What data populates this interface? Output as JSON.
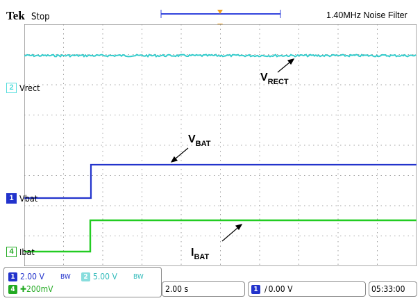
{
  "header": {
    "brand": "Tek",
    "acq_state": "Stop",
    "filter_text": "1.40MHz  Noise Filter"
  },
  "channels": {
    "ch2": {
      "number": "2",
      "label": "Vrect",
      "color": "#55dddd"
    },
    "ch1": {
      "number": "1",
      "label": "Vbat",
      "color": "#2233cc"
    },
    "ch4": {
      "number": "4",
      "label": "Ibat",
      "color": "#22cc22"
    }
  },
  "annotations": {
    "vrect": {
      "main": "V",
      "sub": "RECT"
    },
    "vbat": {
      "main": "V",
      "sub": "BAT"
    },
    "ibat": {
      "main": "I",
      "sub": "BAT"
    }
  },
  "settings": {
    "ch1_scale": "2.00 V",
    "ch2_scale": "5.00 V",
    "ch4_scale": "200mV",
    "bw_symbol": "BW"
  },
  "timebase": "2.00 s",
  "trigger": {
    "channel": "1",
    "level": "0.00 V",
    "slope_symbol": "∕"
  },
  "clock": "05:33:00"
}
